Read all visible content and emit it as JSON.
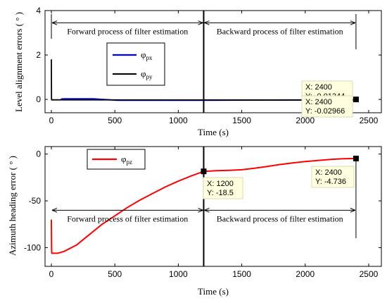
{
  "chart_data": [
    {
      "type": "line",
      "xlabel": "Time (s)",
      "ylabel": "Level alignment errors ( ° )",
      "xlim": [
        -50,
        2600
      ],
      "ylim": [
        -0.6,
        4
      ],
      "xticks": [
        "0",
        "500",
        "1000",
        "1500",
        "2000",
        "2500"
      ],
      "yticks": [
        "0",
        "2",
        "4"
      ],
      "grid": false,
      "legend": {
        "placement": "top-center",
        "entries": [
          {
            "base": "φ",
            "sub": "px",
            "color": "#0000ff"
          },
          {
            "base": "φ",
            "sub": "py",
            "color": "#000000"
          }
        ]
      },
      "series": [
        {
          "name": "φpx",
          "color": "#0000ff",
          "x": [
            75,
            100,
            330,
            520,
            1200,
            2400
          ],
          "y": [
            0.02,
            0.03,
            0.03,
            -0.04,
            -0.04,
            -0.01344
          ]
        },
        {
          "name": "φpy",
          "color": "#000000",
          "x": [
            0,
            1,
            2,
            50,
            1200,
            2400
          ],
          "y": [
            1.8,
            0.05,
            -0.02,
            -0.02,
            -0.025,
            -0.02966
          ]
        }
      ],
      "annotations": [
        {
          "text": "Forward process of filter estimation",
          "x_from": 0,
          "x_to": 1200,
          "y": 3.45
        },
        {
          "text": "Backward process of filter estimation",
          "x_from": 1200,
          "x_to": 2400,
          "y": 3.45
        }
      ],
      "datatips": [
        {
          "x_label": "X: 2400",
          "y_label": "Y: -0.01344"
        },
        {
          "x_label": "X: 2400",
          "y_label": "Y: -0.02966"
        }
      ],
      "markers": [
        {
          "x": 2400,
          "y": 0
        }
      ],
      "divider_x": 1200
    },
    {
      "type": "line",
      "xlabel": "Time (s)",
      "ylabel": "Azimuth heading error ( ° )",
      "xlim": [
        -50,
        2600
      ],
      "ylim": [
        -120,
        8
      ],
      "xticks": [
        "0",
        "500",
        "1000",
        "1500",
        "2000",
        "2500"
      ],
      "yticks": [
        "0",
        "-50",
        "-100"
      ],
      "grid": false,
      "legend": {
        "placement": "top-left",
        "entries": [
          {
            "base": "φ",
            "sub": "pz",
            "color": "#ff0000"
          }
        ]
      },
      "series": [
        {
          "name": "φpz",
          "color": "#ff0000",
          "x": [
            0,
            2,
            5,
            50,
            100,
            200,
            300,
            400,
            500,
            600,
            700,
            800,
            900,
            1000,
            1100,
            1200,
            1300,
            1400,
            1500,
            1600,
            1700,
            1800,
            1900,
            2000,
            2100,
            2200,
            2300,
            2400
          ],
          "y": [
            -70,
            -104,
            -106,
            -106,
            -104,
            -97,
            -86,
            -75,
            -66,
            -57,
            -49,
            -42,
            -35,
            -29,
            -23.5,
            -18.5,
            -17.8,
            -17.4,
            -16.8,
            -15.2,
            -13.2,
            -11.2,
            -9.5,
            -8.0,
            -6.8,
            -5.8,
            -5.0,
            -4.736
          ]
        }
      ],
      "annotations": [
        {
          "text": "Forward process of filter estimation",
          "x_from": 0,
          "x_to": 1200,
          "y": -60
        },
        {
          "text": "Backward process of filter estimation",
          "x_from": 1200,
          "x_to": 2400,
          "y": -60
        }
      ],
      "datatips": [
        {
          "x_label": "X: 1200",
          "y_label": "Y: -18.5"
        },
        {
          "x_label": "X: 2400",
          "y_label": "Y: -4.736"
        }
      ],
      "markers": [
        {
          "x": 1200,
          "y": -18.5
        },
        {
          "x": 2400,
          "y": -4.736
        }
      ],
      "divider_x": 1200
    }
  ]
}
